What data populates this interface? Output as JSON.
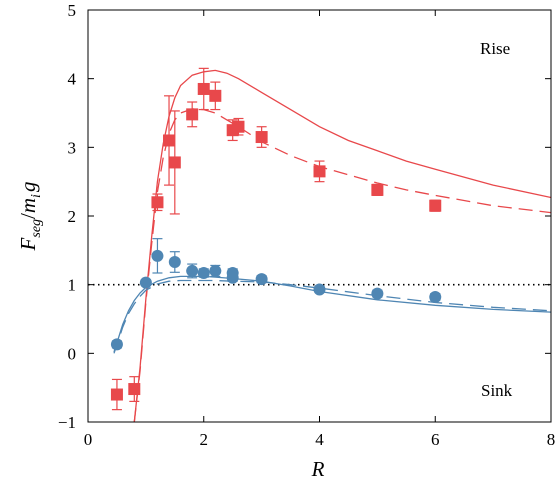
{
  "chart_data": {
    "type": "scatter",
    "title": "",
    "xlabel": "R",
    "ylabel": "F_seg/m_i g",
    "ylabel_parts": {
      "main": "F",
      "sub1": "seg",
      "slash": "/",
      "m": "m",
      "sub2": "i",
      "g": "g"
    },
    "xlim": [
      0,
      8
    ],
    "ylim": [
      -1,
      5
    ],
    "xticks": [
      0,
      2,
      4,
      6,
      8
    ],
    "yticks": [
      -1,
      0,
      1,
      2,
      3,
      4,
      5
    ],
    "grid": false,
    "reference_line": {
      "y": 1,
      "style": "dotted",
      "color": "#000000"
    },
    "annotations": [
      {
        "text": "Rise",
        "x": 7.0,
        "y": 4.4
      },
      {
        "text": "Sink",
        "x": 7.0,
        "y": -0.55
      }
    ],
    "series": [
      {
        "kind": "points",
        "marker": "square",
        "color": "#e8484b",
        "x": [
          0.5,
          0.8,
          1.2,
          1.4,
          1.5,
          1.8,
          2.0,
          2.2,
          2.5,
          2.6,
          3.0,
          4.0,
          5.0,
          6.0
        ],
        "y": [
          -0.6,
          -0.52,
          2.2,
          3.1,
          2.78,
          3.48,
          3.85,
          3.75,
          3.25,
          3.3,
          3.15,
          2.65,
          2.38,
          2.15
        ],
        "yerr": [
          0.22,
          0.18,
          0.12,
          0.65,
          0.75,
          0.18,
          0.3,
          0.2,
          0.15,
          0.12,
          0.15,
          0.15,
          0.08,
          0.08
        ]
      },
      {
        "kind": "points",
        "marker": "circle",
        "color": "#4f86b3",
        "x": [
          0.5,
          1.0,
          1.2,
          1.5,
          1.8,
          2.0,
          2.2,
          2.5,
          2.5,
          3.0,
          4.0,
          5.0,
          6.0
        ],
        "y": [
          0.13,
          1.03,
          1.42,
          1.33,
          1.2,
          1.17,
          1.2,
          1.17,
          1.1,
          1.08,
          0.93,
          0.87,
          0.82
        ],
        "yerr": [
          0.05,
          0.04,
          0.25,
          0.15,
          0.1,
          0.06,
          0.08,
          0.06,
          0.05,
          0.05,
          0.04,
          0.05,
          0.05
        ]
      },
      {
        "kind": "line",
        "style": "solid",
        "color": "#e8484b",
        "x": [
          0.8,
          0.9,
          1.0,
          1.1,
          1.2,
          1.3,
          1.4,
          1.5,
          1.6,
          1.8,
          2.0,
          2.2,
          2.4,
          2.6,
          3.0,
          3.5,
          4.0,
          4.5,
          5.0,
          5.5,
          6.0,
          7.0,
          8.0
        ],
        "y": [
          -1.0,
          -0.2,
          0.8,
          1.7,
          2.5,
          3.05,
          3.45,
          3.72,
          3.9,
          4.05,
          4.1,
          4.12,
          4.08,
          4.0,
          3.8,
          3.55,
          3.3,
          3.1,
          2.95,
          2.8,
          2.68,
          2.45,
          2.27
        ]
      },
      {
        "kind": "line",
        "style": "dashed",
        "color": "#e8484b",
        "x": [
          0.8,
          0.9,
          1.0,
          1.1,
          1.2,
          1.3,
          1.4,
          1.5,
          1.6,
          1.8,
          2.0,
          2.2,
          2.4,
          2.6,
          3.0,
          3.5,
          4.0,
          4.5,
          5.0,
          5.5,
          6.0,
          7.0,
          8.0
        ],
        "y": [
          -1.0,
          -0.25,
          0.75,
          1.6,
          2.35,
          2.85,
          3.2,
          3.4,
          3.5,
          3.56,
          3.55,
          3.5,
          3.4,
          3.3,
          3.08,
          2.88,
          2.72,
          2.6,
          2.48,
          2.38,
          2.3,
          2.15,
          2.05
        ]
      },
      {
        "kind": "line",
        "style": "solid",
        "color": "#4f86b3",
        "x": [
          0.45,
          0.5,
          0.6,
          0.7,
          0.8,
          0.9,
          1.0,
          1.2,
          1.4,
          1.6,
          1.8,
          2.0,
          2.2,
          2.5,
          3.0,
          3.5,
          4.0,
          5.0,
          6.0,
          7.0,
          8.0
        ],
        "y": [
          0.02,
          0.15,
          0.42,
          0.62,
          0.77,
          0.88,
          0.96,
          1.05,
          1.1,
          1.12,
          1.12,
          1.12,
          1.11,
          1.09,
          1.05,
          0.98,
          0.9,
          0.78,
          0.7,
          0.64,
          0.6
        ]
      },
      {
        "kind": "line",
        "style": "dashed",
        "color": "#4f86b3",
        "x": [
          0.45,
          0.5,
          0.6,
          0.7,
          0.8,
          0.9,
          1.0,
          1.2,
          1.4,
          1.6,
          1.8,
          2.0,
          2.2,
          2.5,
          3.0,
          3.5,
          4.0,
          5.0,
          6.0,
          7.0,
          8.0
        ],
        "y": [
          0.0,
          0.12,
          0.38,
          0.58,
          0.72,
          0.83,
          0.92,
          1.01,
          1.05,
          1.06,
          1.06,
          1.06,
          1.06,
          1.05,
          1.04,
          1.0,
          0.95,
          0.84,
          0.74,
          0.67,
          0.62
        ]
      }
    ]
  }
}
